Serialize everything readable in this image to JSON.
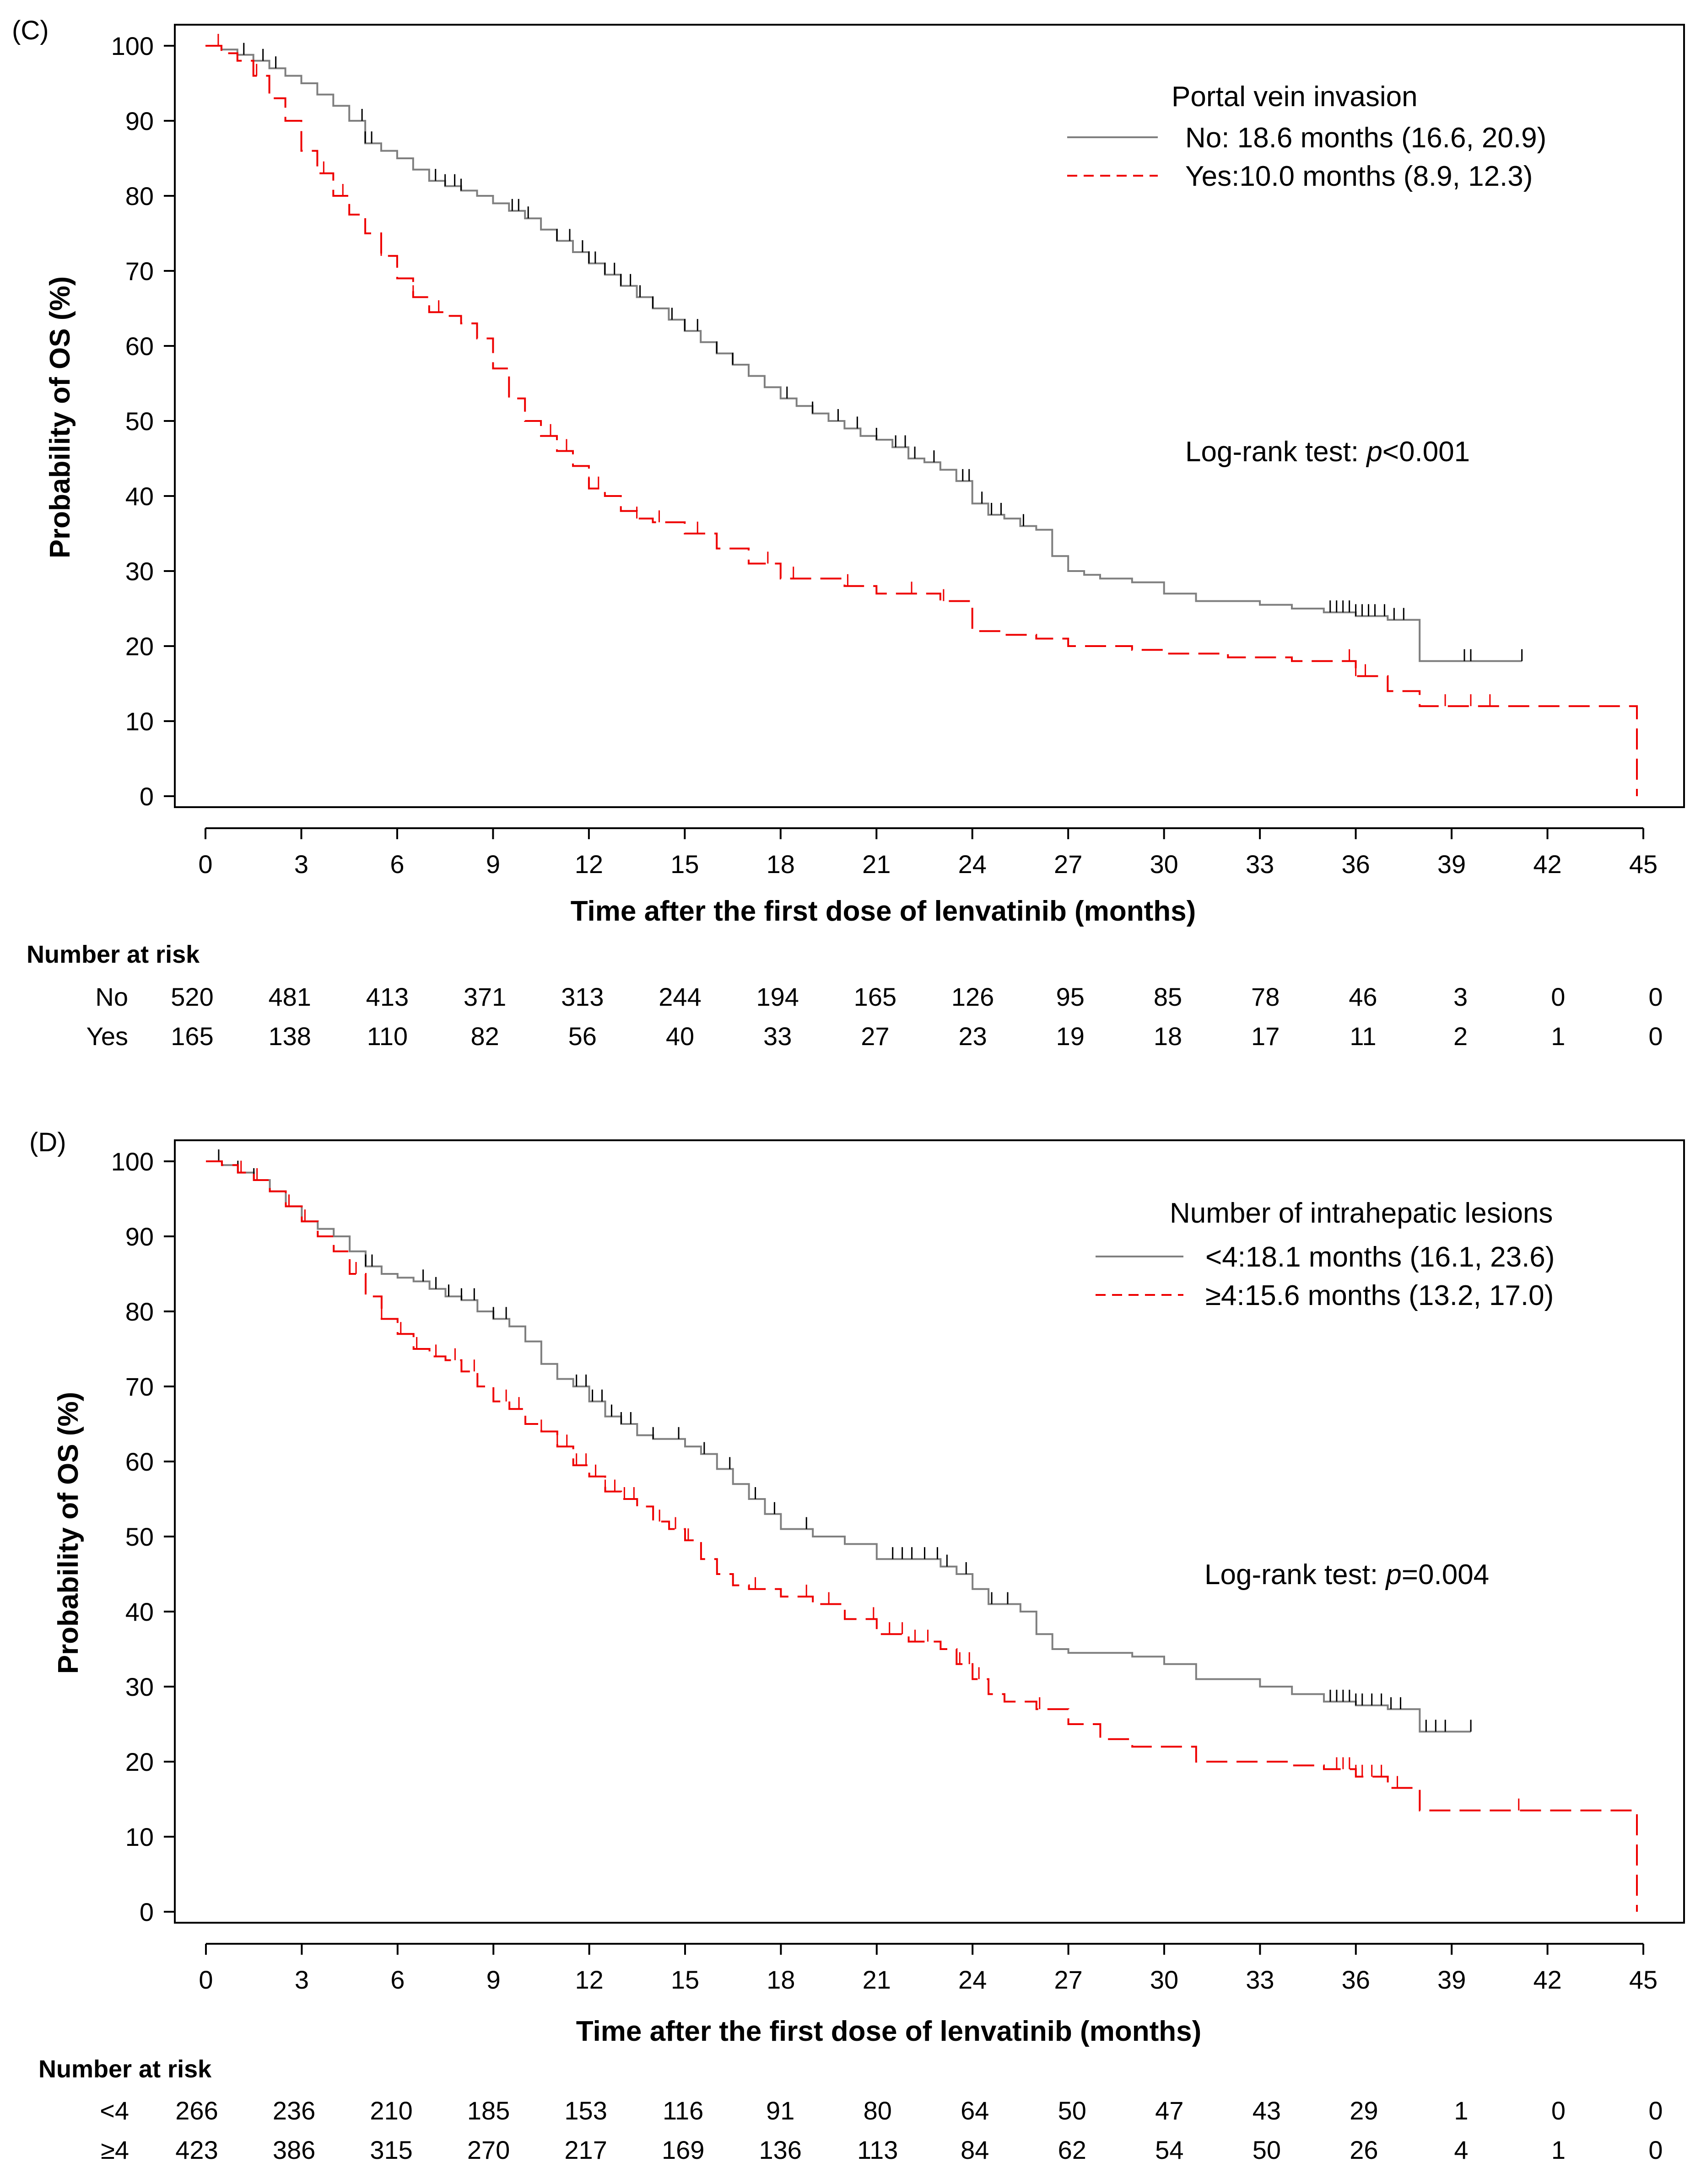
{
  "chart_data": [
    {
      "type": "line",
      "panel_label": "(C)",
      "xlabel": "Time after the first dose of lenvatinib (months)",
      "ylabel": "Probability of OS (%)",
      "xlim": [
        0,
        45
      ],
      "ylim": [
        0,
        100
      ],
      "x_ticks": [
        0,
        3,
        6,
        9,
        12,
        15,
        18,
        21,
        24,
        27,
        30,
        33,
        36,
        39,
        42,
        45
      ],
      "y_ticks": [
        0,
        10,
        20,
        30,
        40,
        50,
        60,
        70,
        80,
        90,
        100
      ],
      "grid": false,
      "legend": {
        "title": "Portal vein invasion",
        "placement": "top-right",
        "entries": [
          {
            "name": "No",
            "label": "No:  18.6 months (16.6, 20.9)",
            "color": "#7f7f7f",
            "style": "solid"
          },
          {
            "name": "Yes",
            "label": "Yes:10.0 months (8.9, 12.3)",
            "color": "#ee0000",
            "style": "dashed"
          }
        ]
      },
      "annotation": {
        "prefix": "Log-rank test: ",
        "italic": "p",
        "suffix": "<0.001"
      },
      "series": [
        {
          "name": "No",
          "color": "#7f7f7f",
          "style": "solid",
          "x": [
            0,
            0.5,
            1,
            1.5,
            2,
            2.5,
            3,
            3.5,
            4,
            4.5,
            5,
            5.5,
            6,
            6.5,
            7,
            7.5,
            8,
            8.5,
            9,
            9.5,
            10,
            10.5,
            11,
            11.5,
            12,
            12.5,
            13,
            13.5,
            14,
            14.5,
            15,
            15.5,
            16,
            16.5,
            17,
            17.5,
            18,
            18.5,
            19,
            19.5,
            20,
            20.5,
            21,
            21.5,
            22,
            22.5,
            23,
            23.5,
            24,
            24.5,
            25,
            25.5,
            26,
            26.5,
            27,
            27.5,
            28,
            28.5,
            29,
            30,
            31,
            32,
            33,
            34,
            35,
            36,
            37,
            38,
            39,
            40,
            41.2
          ],
          "y": [
            100,
            99.5,
            98.8,
            98,
            97,
            96,
            95,
            93.5,
            92,
            90,
            87,
            86,
            85,
            83.5,
            82,
            81.3,
            80.7,
            80,
            79,
            78,
            77,
            75.5,
            74,
            72.5,
            71,
            69.5,
            68,
            66.5,
            65,
            63.5,
            62,
            60.5,
            59,
            57.5,
            56,
            54.5,
            53,
            52,
            51,
            50,
            49,
            48,
            47.5,
            46.5,
            45,
            44.5,
            43.5,
            42,
            39,
            37.5,
            37,
            36,
            35.5,
            32,
            30,
            29.5,
            29,
            29,
            28.5,
            27,
            26,
            26,
            25.5,
            25,
            24.5,
            24,
            23.5,
            18,
            18,
            18,
            18
          ],
          "censor_x": [
            1.2,
            1.8,
            2.2,
            4.9,
            5,
            5.2,
            7.2,
            7.5,
            7.8,
            8,
            9.6,
            9.8,
            10.1,
            11,
            11.4,
            11.8,
            12,
            12.2,
            12.5,
            12.8,
            13,
            13.3,
            13.6,
            14,
            14.6,
            15,
            15.4,
            16,
            16.5,
            18.2,
            19,
            19.8,
            20.4,
            21,
            21.6,
            21.9,
            22.2,
            22.8,
            23.7,
            23.9,
            24.3,
            24.6,
            24.9,
            25.6,
            35.2,
            35.4,
            35.6,
            35.8,
            36,
            36.2,
            36.4,
            36.6,
            36.9,
            37.2,
            37.5,
            39.4,
            39.6,
            41.2
          ]
        },
        {
          "name": "Yes",
          "color": "#ee0000",
          "style": "dashed",
          "x": [
            0,
            0.5,
            1,
            1.5,
            2,
            2.5,
            3,
            3.5,
            4,
            4.5,
            5,
            5.5,
            6,
            6.5,
            7,
            7.5,
            8,
            8.5,
            9,
            9.5,
            10,
            10.5,
            11,
            11.5,
            12,
            12.5,
            13,
            13.5,
            14,
            15,
            16,
            17,
            18,
            19,
            20,
            21,
            22,
            23,
            24,
            25,
            26,
            27,
            28,
            29,
            30,
            31,
            32,
            33,
            34,
            35,
            36,
            37,
            38,
            39,
            40,
            41,
            42,
            43,
            44,
            44.8
          ],
          "y": [
            100,
            99,
            98,
            96,
            93,
            90,
            86,
            83,
            80,
            77.5,
            75,
            72,
            69,
            66.5,
            64.5,
            64,
            63,
            61,
            57,
            53,
            50,
            48,
            46,
            44,
            41,
            40,
            38,
            37,
            36.5,
            35,
            33,
            31,
            29,
            29,
            28,
            27,
            27,
            26,
            22,
            21.5,
            21,
            20,
            20,
            19.5,
            19,
            19,
            18.5,
            18.5,
            18,
            18,
            16,
            14,
            12,
            12,
            12,
            12,
            12,
            12,
            12,
            0
          ],
          "censor_x": [
            0.4,
            1.6,
            3.7,
            4.3,
            5.5,
            6.5,
            7.3,
            10.8,
            11.3,
            12,
            12.3,
            13.5,
            14.2,
            15.4,
            17.6,
            18.4,
            20.1,
            22.1,
            23.1,
            35.8,
            36,
            36.3,
            38.8,
            39.6,
            40.2
          ]
        }
      ]
    },
    {
      "type": "line",
      "panel_label": "(D)",
      "xlabel": "Time after the first dose of lenvatinib (months)",
      "ylabel": "Probability of OS (%)",
      "xlim": [
        0,
        45
      ],
      "ylim": [
        0,
        100
      ],
      "x_ticks": [
        0,
        3,
        6,
        9,
        12,
        15,
        18,
        21,
        24,
        27,
        30,
        33,
        36,
        39,
        42,
        45
      ],
      "y_ticks": [
        0,
        10,
        20,
        30,
        40,
        50,
        60,
        70,
        80,
        90,
        100
      ],
      "grid": false,
      "legend": {
        "title": "Number of intrahepatic lesions",
        "placement": "top-right",
        "entries": [
          {
            "name": "<4",
            "label": "<4:18.1 months (16.1, 23.6)",
            "color": "#7f7f7f",
            "style": "solid"
          },
          {
            "name": "≥4",
            "label": "≥4:15.6 months (13.2, 17.0)",
            "color": "#ee0000",
            "style": "dashed"
          }
        ]
      },
      "annotation": {
        "prefix": "Log-rank test: ",
        "italic": "p",
        "suffix": "=0.004"
      },
      "series": [
        {
          "name": "<4",
          "color": "#7f7f7f",
          "style": "solid",
          "x": [
            0,
            0.5,
            1,
            1.5,
            2,
            2.5,
            3,
            3.5,
            4,
            4.5,
            5,
            5.5,
            6,
            6.5,
            7,
            7.5,
            8,
            8.5,
            9,
            9.5,
            10,
            10.5,
            11,
            11.5,
            12,
            12.5,
            13,
            13.5,
            14,
            15,
            15.5,
            16,
            16.5,
            17,
            17.5,
            18,
            19,
            20,
            21,
            22,
            22.5,
            23,
            23.5,
            24,
            24.5,
            25,
            25.5,
            26,
            26.5,
            27,
            28,
            29,
            30,
            31,
            32,
            33,
            34,
            35,
            36,
            37,
            38,
            39,
            39.6
          ],
          "y": [
            100,
            99.5,
            98.5,
            97.5,
            96,
            94,
            92,
            91,
            90,
            88,
            86,
            85,
            84.5,
            84,
            83,
            82,
            81.5,
            80,
            79,
            78,
            76,
            73,
            71,
            70,
            68,
            66,
            65,
            63.5,
            63,
            62,
            61,
            59,
            57,
            55,
            53,
            51,
            50,
            49,
            47,
            47,
            47,
            46,
            45,
            43,
            41,
            41,
            40,
            37,
            35,
            34.5,
            34.5,
            34,
            33,
            31,
            31,
            30,
            29,
            28,
            27.5,
            27,
            24,
            24,
            24
          ],
          "censor_x": [
            0.4,
            1,
            1.5,
            5,
            5.2,
            6.8,
            7.2,
            7.6,
            8,
            8.4,
            9,
            9.4,
            11.6,
            11.9,
            12.1,
            12.4,
            12.7,
            13,
            13.3,
            14,
            14.8,
            15.6,
            16.4,
            17.2,
            17.8,
            18.8,
            21.5,
            21.8,
            22.1,
            22.5,
            22.9,
            23.2,
            23.8,
            24.6,
            25.1,
            35.2,
            35.4,
            35.6,
            35.8,
            36,
            36.2,
            36.5,
            36.8,
            37.1,
            37.4,
            38.2,
            38.5,
            38.8,
            39.6
          ]
        },
        {
          "name": "≥4",
          "color": "#ee0000",
          "style": "dashed",
          "x": [
            0,
            0.5,
            1,
            1.5,
            2,
            2.5,
            3,
            3.5,
            4,
            4.5,
            5,
            5.5,
            6,
            6.5,
            7,
            7.5,
            8,
            8.5,
            9,
            9.5,
            10,
            10.5,
            11,
            11.5,
            12,
            12.5,
            13,
            13.5,
            14,
            14.5,
            15,
            15.5,
            16,
            16.5,
            17,
            17.5,
            18,
            19,
            20,
            21,
            22,
            23,
            23.5,
            24,
            24.5,
            25,
            26,
            27,
            28,
            29,
            30,
            31,
            32,
            33,
            34,
            35,
            36,
            37,
            38,
            39,
            40,
            41,
            42,
            43,
            44,
            44.8
          ],
          "y": [
            100,
            99.5,
            98.5,
            97.5,
            96,
            94,
            92,
            90,
            88,
            85,
            82,
            79,
            77,
            75,
            74,
            73.5,
            72,
            70,
            68,
            67,
            65,
            64,
            62,
            59.5,
            58,
            56,
            55,
            54,
            52,
            51,
            49.5,
            47,
            45,
            43.5,
            43,
            43,
            42,
            41,
            39,
            37,
            36,
            35,
            33,
            31,
            29,
            28,
            27,
            25,
            23,
            22,
            22,
            20,
            20,
            20,
            19.5,
            19,
            18,
            16.5,
            13.5,
            13.5,
            13.5,
            13.5,
            13.5,
            13.5,
            13.5,
            0
          ],
          "censor_x": [
            1.1,
            1.6,
            2.6,
            3.1,
            4.7,
            5.5,
            6.1,
            6.6,
            7.2,
            7.8,
            8.4,
            9.4,
            9.8,
            10.5,
            11,
            11.3,
            11.6,
            11.9,
            12.2,
            12.5,
            12.8,
            13.1,
            13.4,
            14.2,
            14.7,
            15.1,
            15.5,
            16,
            17.2,
            18.8,
            19.5,
            20.9,
            21.4,
            21.8,
            22.2,
            22.6,
            23.6,
            23.9,
            24.2,
            26.1,
            35.4,
            35.6,
            35.8,
            36,
            36.2,
            36.5,
            36.8,
            37.3,
            41.1
          ]
        }
      ]
    }
  ],
  "risk_tables": [
    {
      "title": "Number at risk",
      "times": [
        0,
        3,
        6,
        9,
        12,
        15,
        18,
        21,
        24,
        27,
        30,
        33,
        36,
        39,
        42,
        45
      ],
      "rows": [
        {
          "label": "No",
          "values": [
            "520",
            "481",
            "413",
            "371",
            "313",
            "244",
            "194",
            "165",
            "126",
            "95",
            "85",
            "78",
            "46",
            "3",
            "0",
            "0"
          ]
        },
        {
          "label": "Yes",
          "values": [
            "165",
            "138",
            "110",
            "82",
            "56",
            "40",
            "33",
            "27",
            "23",
            "19",
            "18",
            "17",
            "11",
            "2",
            "1",
            "0"
          ]
        }
      ]
    },
    {
      "title": "Number at risk",
      "times": [
        0,
        3,
        6,
        9,
        12,
        15,
        18,
        21,
        24,
        27,
        30,
        33,
        36,
        39,
        42,
        45
      ],
      "rows": [
        {
          "label": "<4",
          "values": [
            "266",
            "236",
            "210",
            "185",
            "153",
            "116",
            "91",
            "80",
            "64",
            "50",
            "47",
            "43",
            "29",
            "1",
            "0",
            "0"
          ]
        },
        {
          "label": "≥4",
          "values": [
            "423",
            "386",
            "315",
            "270",
            "217",
            "169",
            "136",
            "113",
            "84",
            "62",
            "54",
            "50",
            "26",
            "4",
            "1",
            "0"
          ]
        }
      ]
    }
  ]
}
